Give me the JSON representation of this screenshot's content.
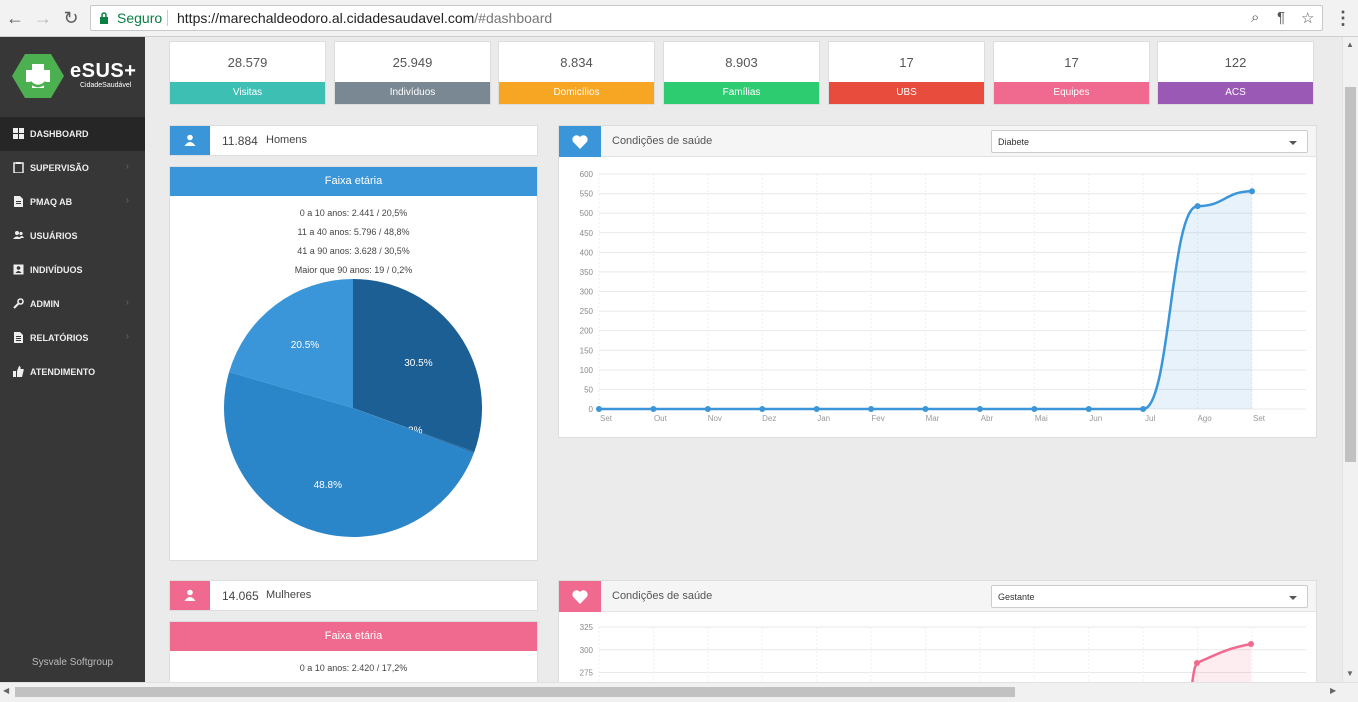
{
  "browser": {
    "secure_label": "Seguro",
    "url_host": "https://marechaldeodoro.al.cidadesaudavel.com",
    "url_path": "/#dashboard"
  },
  "sidebar": {
    "logo_title": "eSUS+",
    "logo_sub": "CidadeSaudável",
    "items": [
      {
        "label": "DASHBOARD",
        "icon": "dashboard-icon",
        "has_chevron": false
      },
      {
        "label": "SUPERVISÃO",
        "icon": "clipboard-icon",
        "has_chevron": true
      },
      {
        "label": "PMAQ AB",
        "icon": "document-icon",
        "has_chevron": true
      },
      {
        "label": "USUÁRIOS",
        "icon": "users-icon",
        "has_chevron": false
      },
      {
        "label": "INDIVÍDUOS",
        "icon": "id-card-icon",
        "has_chevron": false
      },
      {
        "label": "ADMIN",
        "icon": "wrench-icon",
        "has_chevron": true
      },
      {
        "label": "RELATÓRIOS",
        "icon": "report-icon",
        "has_chevron": true
      },
      {
        "label": "ATENDIMENTO",
        "icon": "thumbs-up-icon",
        "has_chevron": false
      }
    ],
    "footer": "Sysvale Softgroup"
  },
  "stats": [
    {
      "value": "28.579",
      "label": "Visitas",
      "color": "#3dbfb4"
    },
    {
      "value": "25.949",
      "label": "Indivíduos",
      "color": "#798892"
    },
    {
      "value": "8.834",
      "label": "Domicílios",
      "color": "#f6a623"
    },
    {
      "value": "8.903",
      "label": "Famílias",
      "color": "#2ecc71"
    },
    {
      "value": "17",
      "label": "UBS",
      "color": "#e74c3c"
    },
    {
      "value": "17",
      "label": "Equipes",
      "color": "#f06a8f"
    },
    {
      "value": "122",
      "label": "ACS",
      "color": "#9b59b6"
    }
  ],
  "men": {
    "count": "11.884",
    "label": "Homens",
    "color": "#3a96d9",
    "faixa_title": "Faixa etária",
    "lines": [
      "0 a 10 anos: 2.441 / 20,5%",
      "11 a 40 anos: 5.796 / 48,8%",
      "41 a 90 anos: 3.628 / 30,5%",
      "Maior que 90 anos: 19 / 0,2%"
    ]
  },
  "women": {
    "count": "14.065",
    "label": "Mulheres",
    "color": "#f06a8f",
    "faixa_title": "Faixa etária",
    "lines": [
      "0 a 10 anos: 2.420 / 17,2%"
    ]
  },
  "health_chart_1": {
    "title": "Condições de saúde",
    "selected": "Diabete",
    "color": "#3a96d9"
  },
  "health_chart_2": {
    "title": "Condições de saúde",
    "selected": "Gestante",
    "color": "#f06a8f"
  },
  "chart_data": [
    {
      "type": "pie",
      "title": "",
      "categories": [
        "0 a 10 anos",
        "11 a 40 anos",
        "41 a 90 anos",
        "Maior que 90 anos"
      ],
      "values": [
        20.5,
        48.8,
        30.5,
        0.2
      ],
      "labels": [
        "20.5%",
        "48.8%",
        "30.5%",
        "0.2%"
      ],
      "colors": [
        "#3a96d9",
        "#2a86c9",
        "#1b5f94",
        "#1b5f94"
      ]
    },
    {
      "type": "area",
      "title": "",
      "categories": [
        "Set",
        "Out",
        "Nov",
        "Dez",
        "Jan",
        "Fev",
        "Mar",
        "Abr",
        "Mai",
        "Jun",
        "Jul",
        "Ago",
        "Set"
      ],
      "values": [
        0,
        0,
        0,
        0,
        0,
        0,
        0,
        0,
        0,
        0,
        0,
        518,
        556
      ],
      "ylim": [
        0,
        600
      ],
      "yticks": [
        0,
        50,
        100,
        150,
        200,
        250,
        300,
        350,
        400,
        450,
        500,
        550,
        600
      ],
      "grid": true
    },
    {
      "type": "area",
      "title": "",
      "categories": [],
      "values": [],
      "ylim": [
        0,
        325
      ],
      "yticks_visible": [
        275,
        300,
        325
      ],
      "grid": true
    }
  ]
}
